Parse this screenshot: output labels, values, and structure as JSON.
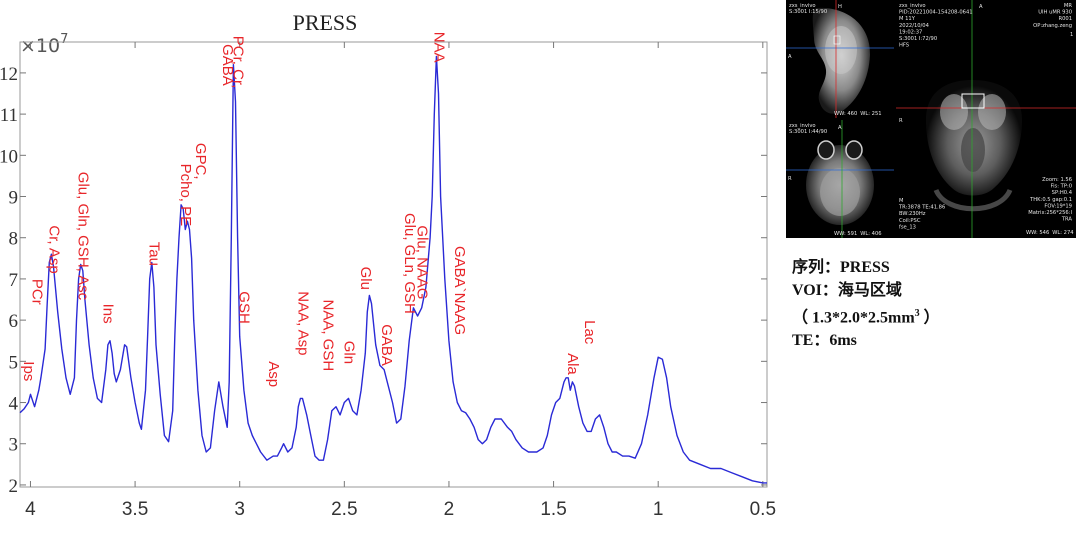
{
  "chart_data": {
    "type": "line",
    "title": "PRESS",
    "y_multiplier": "×10",
    "y_multiplier_exp": "7",
    "x_reversed": true,
    "xlim": [
      4.05,
      0.48
    ],
    "ylim": [
      1.95,
      12.75
    ],
    "x_ticks": [
      4,
      3.5,
      3,
      2.5,
      2,
      1.5,
      1,
      0.5
    ],
    "y_ticks": [
      2,
      3,
      4,
      5,
      6,
      7,
      8,
      9,
      10,
      11,
      12
    ],
    "line_color": "#2a2ad6",
    "label_color": "#e8262a",
    "spectrum": [
      [
        4.05,
        3.75
      ],
      [
        4.03,
        3.85
      ],
      [
        4.01,
        4.0
      ],
      [
        4.0,
        4.2
      ],
      [
        3.98,
        3.9
      ],
      [
        3.96,
        4.3
      ],
      [
        3.95,
        4.6
      ],
      [
        3.93,
        5.3
      ],
      [
        3.92,
        6.4
      ],
      [
        3.91,
        7.4
      ],
      [
        3.9,
        7.6
      ],
      [
        3.89,
        7.3
      ],
      [
        3.87,
        6.2
      ],
      [
        3.85,
        5.3
      ],
      [
        3.83,
        4.6
      ],
      [
        3.81,
        4.2
      ],
      [
        3.79,
        4.6
      ],
      [
        3.78,
        6.0
      ],
      [
        3.77,
        7.0
      ],
      [
        3.76,
        7.35
      ],
      [
        3.75,
        7.2
      ],
      [
        3.74,
        6.5
      ],
      [
        3.72,
        5.4
      ],
      [
        3.7,
        4.6
      ],
      [
        3.68,
        4.1
      ],
      [
        3.66,
        4.0
      ],
      [
        3.64,
        4.8
      ],
      [
        3.63,
        5.4
      ],
      [
        3.62,
        5.5
      ],
      [
        3.61,
        5.2
      ],
      [
        3.6,
        4.7
      ],
      [
        3.59,
        4.5
      ],
      [
        3.57,
        4.8
      ],
      [
        3.55,
        5.4
      ],
      [
        3.54,
        5.35
      ],
      [
        3.52,
        4.6
      ],
      [
        3.5,
        4.0
      ],
      [
        3.48,
        3.5
      ],
      [
        3.47,
        3.35
      ],
      [
        3.45,
        4.3
      ],
      [
        3.44,
        5.6
      ],
      [
        3.43,
        7.0
      ],
      [
        3.42,
        7.4
      ],
      [
        3.41,
        6.8
      ],
      [
        3.4,
        5.4
      ],
      [
        3.38,
        4.2
      ],
      [
        3.36,
        3.2
      ],
      [
        3.34,
        3.05
      ],
      [
        3.32,
        3.8
      ],
      [
        3.31,
        5.6
      ],
      [
        3.3,
        7.0
      ],
      [
        3.29,
        8.0
      ],
      [
        3.28,
        8.8
      ],
      [
        3.27,
        8.7
      ],
      [
        3.26,
        8.2
      ],
      [
        3.25,
        8.4
      ],
      [
        3.24,
        8.2
      ],
      [
        3.23,
        7.5
      ],
      [
        3.22,
        6.0
      ],
      [
        3.2,
        4.3
      ],
      [
        3.18,
        3.2
      ],
      [
        3.16,
        2.8
      ],
      [
        3.14,
        2.9
      ],
      [
        3.12,
        3.8
      ],
      [
        3.1,
        4.5
      ],
      [
        3.08,
        3.9
      ],
      [
        3.06,
        3.4
      ],
      [
        3.05,
        4.5
      ],
      [
        3.04,
        8.0
      ],
      [
        3.03,
        12.2
      ],
      [
        3.02,
        11.3
      ],
      [
        3.01,
        8.0
      ],
      [
        3.0,
        5.6
      ],
      [
        2.98,
        4.3
      ],
      [
        2.96,
        3.5
      ],
      [
        2.94,
        3.2
      ],
      [
        2.92,
        3.0
      ],
      [
        2.9,
        2.8
      ],
      [
        2.87,
        2.6
      ],
      [
        2.84,
        2.7
      ],
      [
        2.82,
        2.7
      ],
      [
        2.8,
        2.9
      ],
      [
        2.79,
        3.0
      ],
      [
        2.77,
        2.8
      ],
      [
        2.75,
        2.9
      ],
      [
        2.73,
        3.4
      ],
      [
        2.72,
        3.9
      ],
      [
        2.71,
        4.1
      ],
      [
        2.7,
        4.1
      ],
      [
        2.68,
        3.7
      ],
      [
        2.66,
        3.2
      ],
      [
        2.64,
        2.7
      ],
      [
        2.62,
        2.6
      ],
      [
        2.6,
        2.6
      ],
      [
        2.58,
        3.1
      ],
      [
        2.56,
        3.8
      ],
      [
        2.54,
        3.9
      ],
      [
        2.52,
        3.7
      ],
      [
        2.5,
        4.0
      ],
      [
        2.48,
        4.1
      ],
      [
        2.46,
        3.8
      ],
      [
        2.44,
        3.7
      ],
      [
        2.42,
        4.3
      ],
      [
        2.4,
        5.2
      ],
      [
        2.39,
        6.2
      ],
      [
        2.38,
        6.6
      ],
      [
        2.37,
        6.4
      ],
      [
        2.35,
        5.4
      ],
      [
        2.33,
        4.9
      ],
      [
        2.31,
        4.8
      ],
      [
        2.29,
        4.4
      ],
      [
        2.27,
        4.0
      ],
      [
        2.25,
        3.5
      ],
      [
        2.23,
        3.6
      ],
      [
        2.21,
        4.4
      ],
      [
        2.19,
        5.5
      ],
      [
        2.17,
        6.3
      ],
      [
        2.15,
        6.1
      ],
      [
        2.13,
        6.3
      ],
      [
        2.11,
        6.8
      ],
      [
        2.09,
        8.0
      ],
      [
        2.08,
        9.0
      ],
      [
        2.07,
        11.0
      ],
      [
        2.06,
        12.4
      ],
      [
        2.05,
        11.5
      ],
      [
        2.04,
        9.0
      ],
      [
        2.02,
        7.0
      ],
      [
        2.0,
        5.5
      ],
      [
        1.98,
        4.5
      ],
      [
        1.96,
        4.0
      ],
      [
        1.94,
        3.8
      ],
      [
        1.92,
        3.75
      ],
      [
        1.9,
        3.6
      ],
      [
        1.88,
        3.4
      ],
      [
        1.86,
        3.1
      ],
      [
        1.84,
        3.0
      ],
      [
        1.82,
        3.1
      ],
      [
        1.8,
        3.4
      ],
      [
        1.78,
        3.6
      ],
      [
        1.75,
        3.6
      ],
      [
        1.72,
        3.4
      ],
      [
        1.7,
        3.3
      ],
      [
        1.68,
        3.1
      ],
      [
        1.65,
        2.9
      ],
      [
        1.62,
        2.8
      ],
      [
        1.6,
        2.8
      ],
      [
        1.58,
        2.8
      ],
      [
        1.55,
        2.9
      ],
      [
        1.53,
        3.2
      ],
      [
        1.51,
        3.7
      ],
      [
        1.49,
        4.0
      ],
      [
        1.47,
        4.1
      ],
      [
        1.45,
        4.5
      ],
      [
        1.44,
        4.6
      ],
      [
        1.43,
        4.6
      ],
      [
        1.42,
        4.3
      ],
      [
        1.41,
        4.5
      ],
      [
        1.4,
        4.4
      ],
      [
        1.38,
        3.9
      ],
      [
        1.36,
        3.5
      ],
      [
        1.34,
        3.3
      ],
      [
        1.32,
        3.3
      ],
      [
        1.3,
        3.6
      ],
      [
        1.28,
        3.7
      ],
      [
        1.26,
        3.4
      ],
      [
        1.24,
        3.0
      ],
      [
        1.22,
        2.8
      ],
      [
        1.2,
        2.8
      ],
      [
        1.17,
        2.7
      ],
      [
        1.14,
        2.7
      ],
      [
        1.11,
        2.65
      ],
      [
        1.08,
        3.0
      ],
      [
        1.05,
        3.7
      ],
      [
        1.02,
        4.6
      ],
      [
        1.0,
        5.1
      ],
      [
        0.98,
        5.05
      ],
      [
        0.96,
        4.6
      ],
      [
        0.94,
        3.9
      ],
      [
        0.91,
        3.2
      ],
      [
        0.88,
        2.8
      ],
      [
        0.85,
        2.6
      ],
      [
        0.8,
        2.5
      ],
      [
        0.75,
        2.4
      ],
      [
        0.7,
        2.4
      ],
      [
        0.65,
        2.3
      ],
      [
        0.6,
        2.2
      ],
      [
        0.55,
        2.1
      ],
      [
        0.5,
        2.05
      ],
      [
        0.48,
        2.05
      ]
    ],
    "annotations": [
      {
        "text": "PCr",
        "x": 3.99,
        "y": 7.0
      },
      {
        "text": "Ips",
        "x": 4.03,
        "y": 5.0
      },
      {
        "text": "Cr, Asp",
        "x": 3.91,
        "y": 8.3
      },
      {
        "text": "Glu, Gln, GSH, Asc",
        "x": 3.77,
        "y": 9.6
      },
      {
        "text": "Ins",
        "x": 3.65,
        "y": 6.4
      },
      {
        "text": "Tau",
        "x": 3.43,
        "y": 7.9
      },
      {
        "text": "Pcho, PE",
        "x": 3.28,
        "y": 9.8
      },
      {
        "text": "GPC,",
        "x": 3.21,
        "y": 10.3
      },
      {
        "text": "GABA",
        "x": 3.08,
        "y": 12.7
      },
      {
        "text": "PCr, Cr,",
        "x": 3.03,
        "y": 12.9
      },
      {
        "text": "GSH",
        "x": 3.0,
        "y": 6.7
      },
      {
        "text": "Asp",
        "x": 2.86,
        "y": 5.0
      },
      {
        "text": "NAA, Asp",
        "x": 2.72,
        "y": 6.7
      },
      {
        "text": "NAA, GSH",
        "x": 2.6,
        "y": 6.5
      },
      {
        "text": "Gln",
        "x": 2.5,
        "y": 5.5
      },
      {
        "text": "Glu",
        "x": 2.42,
        "y": 7.3
      },
      {
        "text": "GABA",
        "x": 2.32,
        "y": 5.9
      },
      {
        "text": "Glu, GLn, GSH",
        "x": 2.21,
        "y": 8.6
      },
      {
        "text": "Glu, NAAG",
        "x": 2.15,
        "y": 8.3
      },
      {
        "text": "NAA",
        "x": 2.07,
        "y": 13.0
      },
      {
        "text": "GABA`NAAG",
        "x": 1.97,
        "y": 7.8
      },
      {
        "text": "Lac",
        "x": 1.35,
        "y": 6.0
      },
      {
        "text": "Ala",
        "x": 1.43,
        "y": 5.2
      }
    ]
  },
  "mri": {
    "sag": {
      "top_left": "zxs_invivo",
      "line2": "S:3001 I:15/90",
      "mark_top": "H",
      "mark_left": "A",
      "ww": "WW: 460",
      "wl": "WL: 251"
    },
    "axial": {
      "top_left": "zxs_invivo",
      "line2": "S:3001 I:44/90",
      "mark_left": "R",
      "mark_top": "A",
      "ww": "WW: 591",
      "wl": "WL: 406"
    },
    "coronal": {
      "top_left": [
        "zxs_invivo",
        "PID:20221004-154208-0641",
        "M 11Y",
        "2022/10/04",
        "19:02:37",
        "S:3001 I:72/90",
        "HFS"
      ],
      "top_right": [
        "MR",
        "UIH uMR 930",
        "R001",
        "OP:zhang.zeng"
      ],
      "top_center": "A",
      "left_mark": "R",
      "num1": "1",
      "bottom_right": [
        "Zoom: 1.56",
        "Fis: TP:0",
        "SP:H0.4",
        "THK:0.5 gap:0.1",
        "FOV:19*19",
        "Matrix:256*256:I",
        "TRA"
      ],
      "bottom_left": [
        "M",
        "TR:3878 TE:41.86",
        "BW:230Hz",
        "Coil:PSC",
        "fse_13"
      ],
      "ww": "WW: 546",
      "wl": "WL: 274"
    }
  },
  "caption": {
    "line1": "序列：PRESS",
    "line2": "VOI：海马区域",
    "line3_a": "（ 1.3*2.0*2.5mm",
    "line3_sup": "3",
    "line3_b": " ）",
    "line4": "TE：6ms"
  }
}
